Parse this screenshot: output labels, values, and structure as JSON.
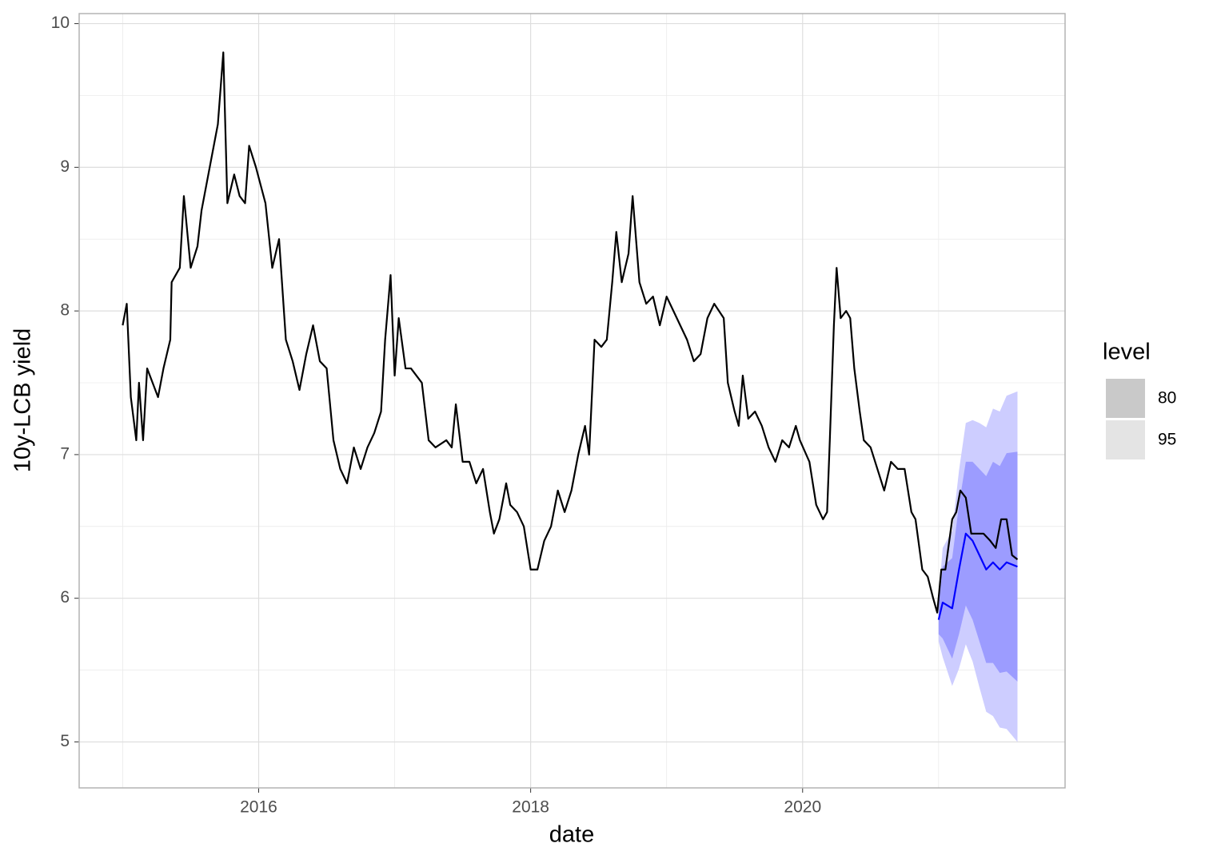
{
  "chart_data": {
    "type": "line",
    "x_label": "date",
    "y_label": "10y-LCB yield",
    "xlim": [
      2014.68,
      2021.93
    ],
    "ylim": [
      4.68,
      10.07
    ],
    "xticks": [
      2016,
      2018,
      2020
    ],
    "yticks": [
      5,
      6,
      7,
      8,
      9,
      10
    ],
    "x_minor_ticks": [
      2015,
      2017,
      2019,
      2021
    ],
    "y_minor_ticks": [
      5.5,
      6.5,
      7.5,
      8.5,
      9.5
    ],
    "grid": true,
    "series": [
      {
        "color": "#000000",
        "x": [
          2015.0,
          2015.03,
          2015.06,
          2015.1,
          2015.12,
          2015.15,
          2015.18,
          2015.22,
          2015.26,
          2015.3,
          2015.35,
          2015.36,
          2015.42,
          2015.45,
          2015.5,
          2015.55,
          2015.58,
          2015.62,
          2015.66,
          2015.7,
          2015.74,
          2015.77,
          2015.82,
          2015.86,
          2015.9,
          2015.93,
          2015.98,
          2016.05,
          2016.1,
          2016.15,
          2016.2,
          2016.25,
          2016.3,
          2016.35,
          2016.4,
          2016.45,
          2016.5,
          2016.55,
          2016.6,
          2016.65,
          2016.7,
          2016.75,
          2016.8,
          2016.85,
          2016.9,
          2016.93,
          2016.97,
          2017.0,
          2017.03,
          2017.08,
          2017.12,
          2017.2,
          2017.25,
          2017.3,
          2017.38,
          2017.42,
          2017.45,
          2017.5,
          2017.55,
          2017.6,
          2017.65,
          2017.7,
          2017.73,
          2017.77,
          2017.82,
          2017.85,
          2017.9,
          2017.95,
          2018.0,
          2018.05,
          2018.1,
          2018.15,
          2018.2,
          2018.25,
          2018.3,
          2018.35,
          2018.4,
          2018.43,
          2018.47,
          2018.52,
          2018.56,
          2018.6,
          2018.63,
          2018.67,
          2018.72,
          2018.75,
          2018.8,
          2018.85,
          2018.9,
          2018.95,
          2019.0,
          2019.05,
          2019.1,
          2019.15,
          2019.2,
          2019.25,
          2019.3,
          2019.35,
          2019.42,
          2019.45,
          2019.5,
          2019.53,
          2019.56,
          2019.6,
          2019.65,
          2019.7,
          2019.75,
          2019.8,
          2019.85,
          2019.9,
          2019.95,
          2019.98,
          2020.05,
          2020.1,
          2020.15,
          2020.18,
          2020.2,
          2020.23,
          2020.25,
          2020.28,
          2020.32,
          2020.35,
          2020.38,
          2020.42,
          2020.45,
          2020.5,
          2020.55,
          2020.6,
          2020.65,
          2020.7,
          2020.75,
          2020.8,
          2020.83,
          2020.88,
          2020.92,
          2020.96,
          2020.99,
          2021.02,
          2021.05,
          2021.1,
          2021.13,
          2021.16,
          2021.2,
          2021.24,
          2021.28,
          2021.33,
          2021.38,
          2021.42,
          2021.46,
          2021.5,
          2021.54,
          2021.58
        ],
        "values": [
          7.9,
          8.05,
          7.4,
          7.1,
          7.5,
          7.1,
          7.6,
          7.5,
          7.4,
          7.6,
          7.8,
          8.2,
          8.3,
          8.8,
          8.3,
          8.45,
          8.7,
          8.9,
          9.1,
          9.3,
          9.8,
          8.75,
          8.95,
          8.8,
          8.75,
          9.15,
          9.0,
          8.75,
          8.3,
          8.5,
          7.8,
          7.65,
          7.45,
          7.7,
          7.9,
          7.65,
          7.6,
          7.1,
          6.9,
          6.8,
          7.05,
          6.9,
          7.05,
          7.15,
          7.3,
          7.8,
          8.25,
          7.55,
          7.95,
          7.6,
          7.6,
          7.5,
          7.1,
          7.05,
          7.1,
          7.05,
          7.35,
          6.95,
          6.95,
          6.8,
          6.9,
          6.6,
          6.45,
          6.55,
          6.8,
          6.65,
          6.6,
          6.5,
          6.2,
          6.2,
          6.4,
          6.5,
          6.75,
          6.6,
          6.75,
          7.0,
          7.2,
          7.0,
          7.8,
          7.75,
          7.8,
          8.2,
          8.55,
          8.2,
          8.4,
          8.8,
          8.2,
          8.05,
          8.1,
          7.9,
          8.1,
          8.0,
          7.9,
          7.8,
          7.65,
          7.7,
          7.95,
          8.05,
          7.95,
          7.5,
          7.3,
          7.2,
          7.55,
          7.25,
          7.3,
          7.2,
          7.05,
          6.95,
          7.1,
          7.05,
          7.2,
          7.1,
          6.95,
          6.65,
          6.55,
          6.6,
          7.1,
          7.9,
          8.3,
          7.95,
          8.0,
          7.95,
          7.6,
          7.3,
          7.1,
          7.05,
          6.9,
          6.75,
          6.95,
          6.9,
          6.9,
          6.6,
          6.55,
          6.2,
          6.15,
          6.0,
          5.9,
          6.2,
          6.2,
          6.55,
          6.6,
          6.75,
          6.7,
          6.45,
          6.45,
          6.45,
          6.4,
          6.35,
          6.55,
          6.55,
          6.3,
          6.27
        ]
      },
      {
        "color": "#0000ff",
        "x": [
          2021.0,
          2021.03,
          2021.1,
          2021.15,
          2021.2,
          2021.25,
          2021.3,
          2021.35,
          2021.4,
          2021.45,
          2021.5,
          2021.58
        ],
        "values": [
          5.85,
          5.97,
          5.93,
          6.2,
          6.45,
          6.4,
          6.3,
          6.2,
          6.25,
          6.2,
          6.25,
          6.22
        ]
      }
    ],
    "band_x": [
      2021.0,
      2021.03,
      2021.1,
      2021.15,
      2021.2,
      2021.25,
      2021.3,
      2021.35,
      2021.4,
      2021.45,
      2021.5,
      2021.58
    ],
    "legend_title": "level",
    "bands": [
      {
        "name": "80",
        "color": "#9c9cff",
        "swatch": "#c9c9c9",
        "lower": [
          5.75,
          5.72,
          5.58,
          5.75,
          5.95,
          5.85,
          5.7,
          5.55,
          5.55,
          5.48,
          5.49,
          5.42
        ],
        "upper": [
          5.95,
          6.22,
          6.28,
          6.65,
          6.95,
          6.95,
          6.9,
          6.85,
          6.95,
          6.92,
          7.01,
          7.02
        ]
      },
      {
        "name": "95",
        "color": "#cdcdff",
        "swatch": "#e4e4e4",
        "lower": [
          5.7,
          5.59,
          5.39,
          5.51,
          5.68,
          5.56,
          5.38,
          5.21,
          5.18,
          5.1,
          5.09,
          5.0
        ],
        "upper": [
          6.0,
          6.35,
          6.47,
          6.89,
          7.22,
          7.24,
          7.22,
          7.19,
          7.32,
          7.3,
          7.41,
          7.44
        ]
      }
    ]
  }
}
